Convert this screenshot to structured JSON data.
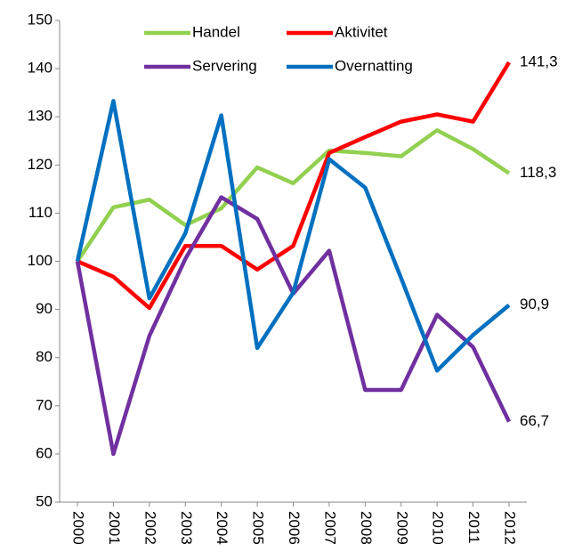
{
  "chart_data": {
    "type": "line",
    "categories": [
      "2000",
      "2001",
      "2002",
      "2003",
      "2004",
      "2005",
      "2006",
      "2007",
      "2008",
      "2009",
      "2010",
      "2011",
      "2012"
    ],
    "series": [
      {
        "name": "Handel",
        "color": "#92d050",
        "values": [
          100,
          111.2,
          112.8,
          107.5,
          111,
          119.5,
          116.2,
          123,
          122.5,
          121.8,
          127.2,
          123.3,
          118.3
        ],
        "value_labels": [
          null,
          null,
          null,
          null,
          null,
          null,
          null,
          null,
          null,
          null,
          null,
          null,
          "118,3"
        ]
      },
      {
        "name": "Aktivitet",
        "color": "#ff0000",
        "values": [
          100,
          96.8,
          90.3,
          103.2,
          103.2,
          98.3,
          103.2,
          122.5,
          125.8,
          129,
          130.5,
          129,
          141.3
        ],
        "value_labels": [
          null,
          null,
          null,
          null,
          null,
          null,
          null,
          null,
          null,
          null,
          null,
          null,
          "141,3"
        ]
      },
      {
        "name": "Servering",
        "color": "#7030a0",
        "values": [
          100,
          60,
          84.5,
          100.5,
          113.3,
          108.8,
          93.3,
          102.2,
          73.3,
          73.3,
          88.9,
          82.2,
          66.7
        ],
        "value_labels": [
          null,
          null,
          null,
          null,
          null,
          null,
          null,
          null,
          null,
          null,
          null,
          null,
          "66,7"
        ]
      },
      {
        "name": "Overnatting",
        "color": "#0070c0",
        "values": [
          100,
          133.3,
          92.3,
          105.8,
          130.3,
          82,
          93.5,
          121.2,
          115.3,
          96.5,
          77.3,
          84.7,
          90.9
        ],
        "value_labels": [
          null,
          null,
          null,
          null,
          null,
          null,
          null,
          null,
          null,
          null,
          null,
          null,
          "90,9"
        ]
      }
    ],
    "ylim": [
      50,
      150
    ],
    "yticks": [
      50,
      60,
      70,
      80,
      90,
      100,
      110,
      120,
      130,
      140,
      150
    ],
    "grid": false
  }
}
